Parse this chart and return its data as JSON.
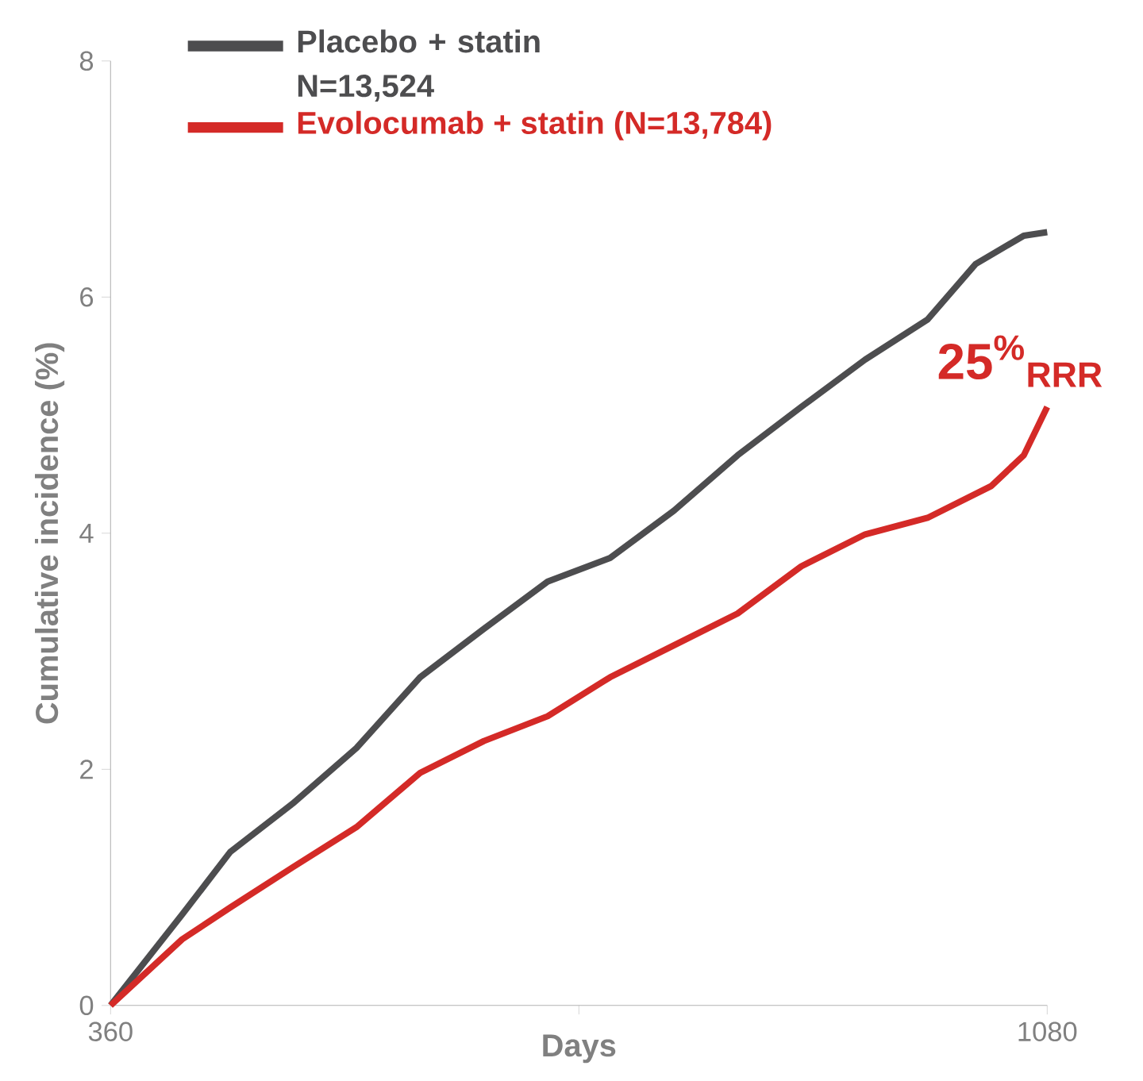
{
  "chart_data": {
    "type": "line",
    "xlabel": "Days",
    "ylabel": "Cumulative incidence (%)",
    "xlim": [
      360,
      1080
    ],
    "ylim": [
      0,
      8
    ],
    "xticks": [
      360,
      {
        "value": 720,
        "label": null
      },
      1080
    ],
    "yticks": [
      0,
      2,
      4,
      6,
      8
    ],
    "grid": false,
    "legend": "top left",
    "marker": "none",
    "line_style": "solid",
    "annotations": [
      "25$^{%}$$_{RRR}$"
    ],
    "series": [
      {
        "name": "Placebo + statin N=13,524",
        "color": "#4d4d4f",
        "x": [
          360,
          415,
          452,
          500,
          549,
          598,
          647,
          696,
          744,
          793,
          842,
          891,
          940,
          988,
          1025,
          1062,
          1080
        ],
        "values": [
          0,
          0.77,
          1.3,
          1.71,
          2.18,
          2.78,
          3.19,
          3.59,
          3.79,
          4.19,
          4.66,
          5.07,
          5.47,
          5.81,
          6.28,
          6.52,
          6.55
        ]
      },
      {
        "name": "Evolocumab + statin (N=13,784)",
        "color": "#d42a27",
        "x": [
          360,
          415,
          452,
          500,
          549,
          598,
          647,
          696,
          744,
          793,
          842,
          891,
          940,
          988,
          1037,
          1062,
          1080
        ],
        "values": [
          0,
          0.56,
          0.83,
          1.17,
          1.51,
          1.97,
          2.24,
          2.45,
          2.78,
          3.05,
          3.32,
          3.72,
          3.99,
          4.13,
          4.4,
          4.66,
          5.07
        ]
      }
    ]
  }
}
